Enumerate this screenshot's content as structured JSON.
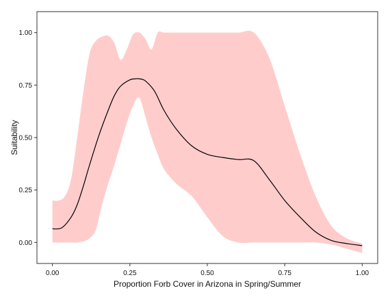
{
  "chart_data": {
    "type": "line",
    "title": "",
    "xlabel": "Proportion Forb Cover in Arizona in Spring/Summer",
    "ylabel": "Suitability",
    "xlim": [
      -0.05,
      1.05
    ],
    "ylim": [
      -0.1,
      1.1
    ],
    "x_ticks": [
      0.0,
      0.25,
      0.5,
      0.75,
      1.0
    ],
    "x_tick_labels": [
      "0.00",
      "0.25",
      "0.50",
      "0.75",
      "1.00"
    ],
    "y_ticks": [
      0.0,
      0.25,
      0.5,
      0.75,
      1.0
    ],
    "y_tick_labels": [
      "0.00",
      "0.25",
      "0.50",
      "0.75",
      "1.00"
    ],
    "grid": false,
    "legend": "none",
    "band_color": "#ffcccc",
    "line_color": "#000000",
    "series": [
      {
        "x": [
          0.0,
          0.03,
          0.06,
          0.08,
          0.1,
          0.12,
          0.15,
          0.18,
          0.2,
          0.22,
          0.25,
          0.27,
          0.28,
          0.3,
          0.33,
          0.36,
          0.4,
          0.45,
          0.5,
          0.55,
          0.6,
          0.65,
          0.7,
          0.75,
          0.8,
          0.85,
          0.9,
          0.95,
          1.0
        ],
        "values": [
          0.065,
          0.07,
          0.12,
          0.18,
          0.27,
          0.37,
          0.51,
          0.63,
          0.7,
          0.745,
          0.775,
          0.78,
          0.78,
          0.77,
          0.72,
          0.63,
          0.54,
          0.46,
          0.42,
          0.405,
          0.395,
          0.39,
          0.3,
          0.2,
          0.12,
          0.05,
          0.01,
          -0.005,
          -0.015
        ]
      }
    ],
    "confidence_band": {
      "x": [
        0.0,
        0.02,
        0.04,
        0.06,
        0.08,
        0.1,
        0.12,
        0.14,
        0.16,
        0.18,
        0.2,
        0.22,
        0.24,
        0.26,
        0.28,
        0.3,
        0.32,
        0.34,
        0.36,
        0.4,
        0.45,
        0.5,
        0.55,
        0.6,
        0.65,
        0.7,
        0.75,
        0.8,
        0.85,
        0.9,
        0.95,
        1.0
      ],
      "upper": [
        0.2,
        0.2,
        0.22,
        0.3,
        0.5,
        0.72,
        0.9,
        0.96,
        0.98,
        0.985,
        0.95,
        0.87,
        0.92,
        0.99,
        1.0,
        0.97,
        0.92,
        1.0,
        1.0,
        1.0,
        1.0,
        1.0,
        1.0,
        1.0,
        1.0,
        0.88,
        0.65,
        0.42,
        0.22,
        0.08,
        0.02,
        -0.005
      ],
      "lower": [
        0.0,
        0.0,
        0.0,
        0.0,
        0.0,
        0.005,
        0.02,
        0.06,
        0.18,
        0.28,
        0.37,
        0.47,
        0.57,
        0.65,
        0.69,
        0.6,
        0.5,
        0.42,
        0.35,
        0.28,
        0.22,
        0.12,
        0.03,
        0.0,
        0.0,
        0.0,
        0.0,
        0.0,
        0.0,
        -0.01,
        -0.03,
        -0.05
      ]
    }
  }
}
